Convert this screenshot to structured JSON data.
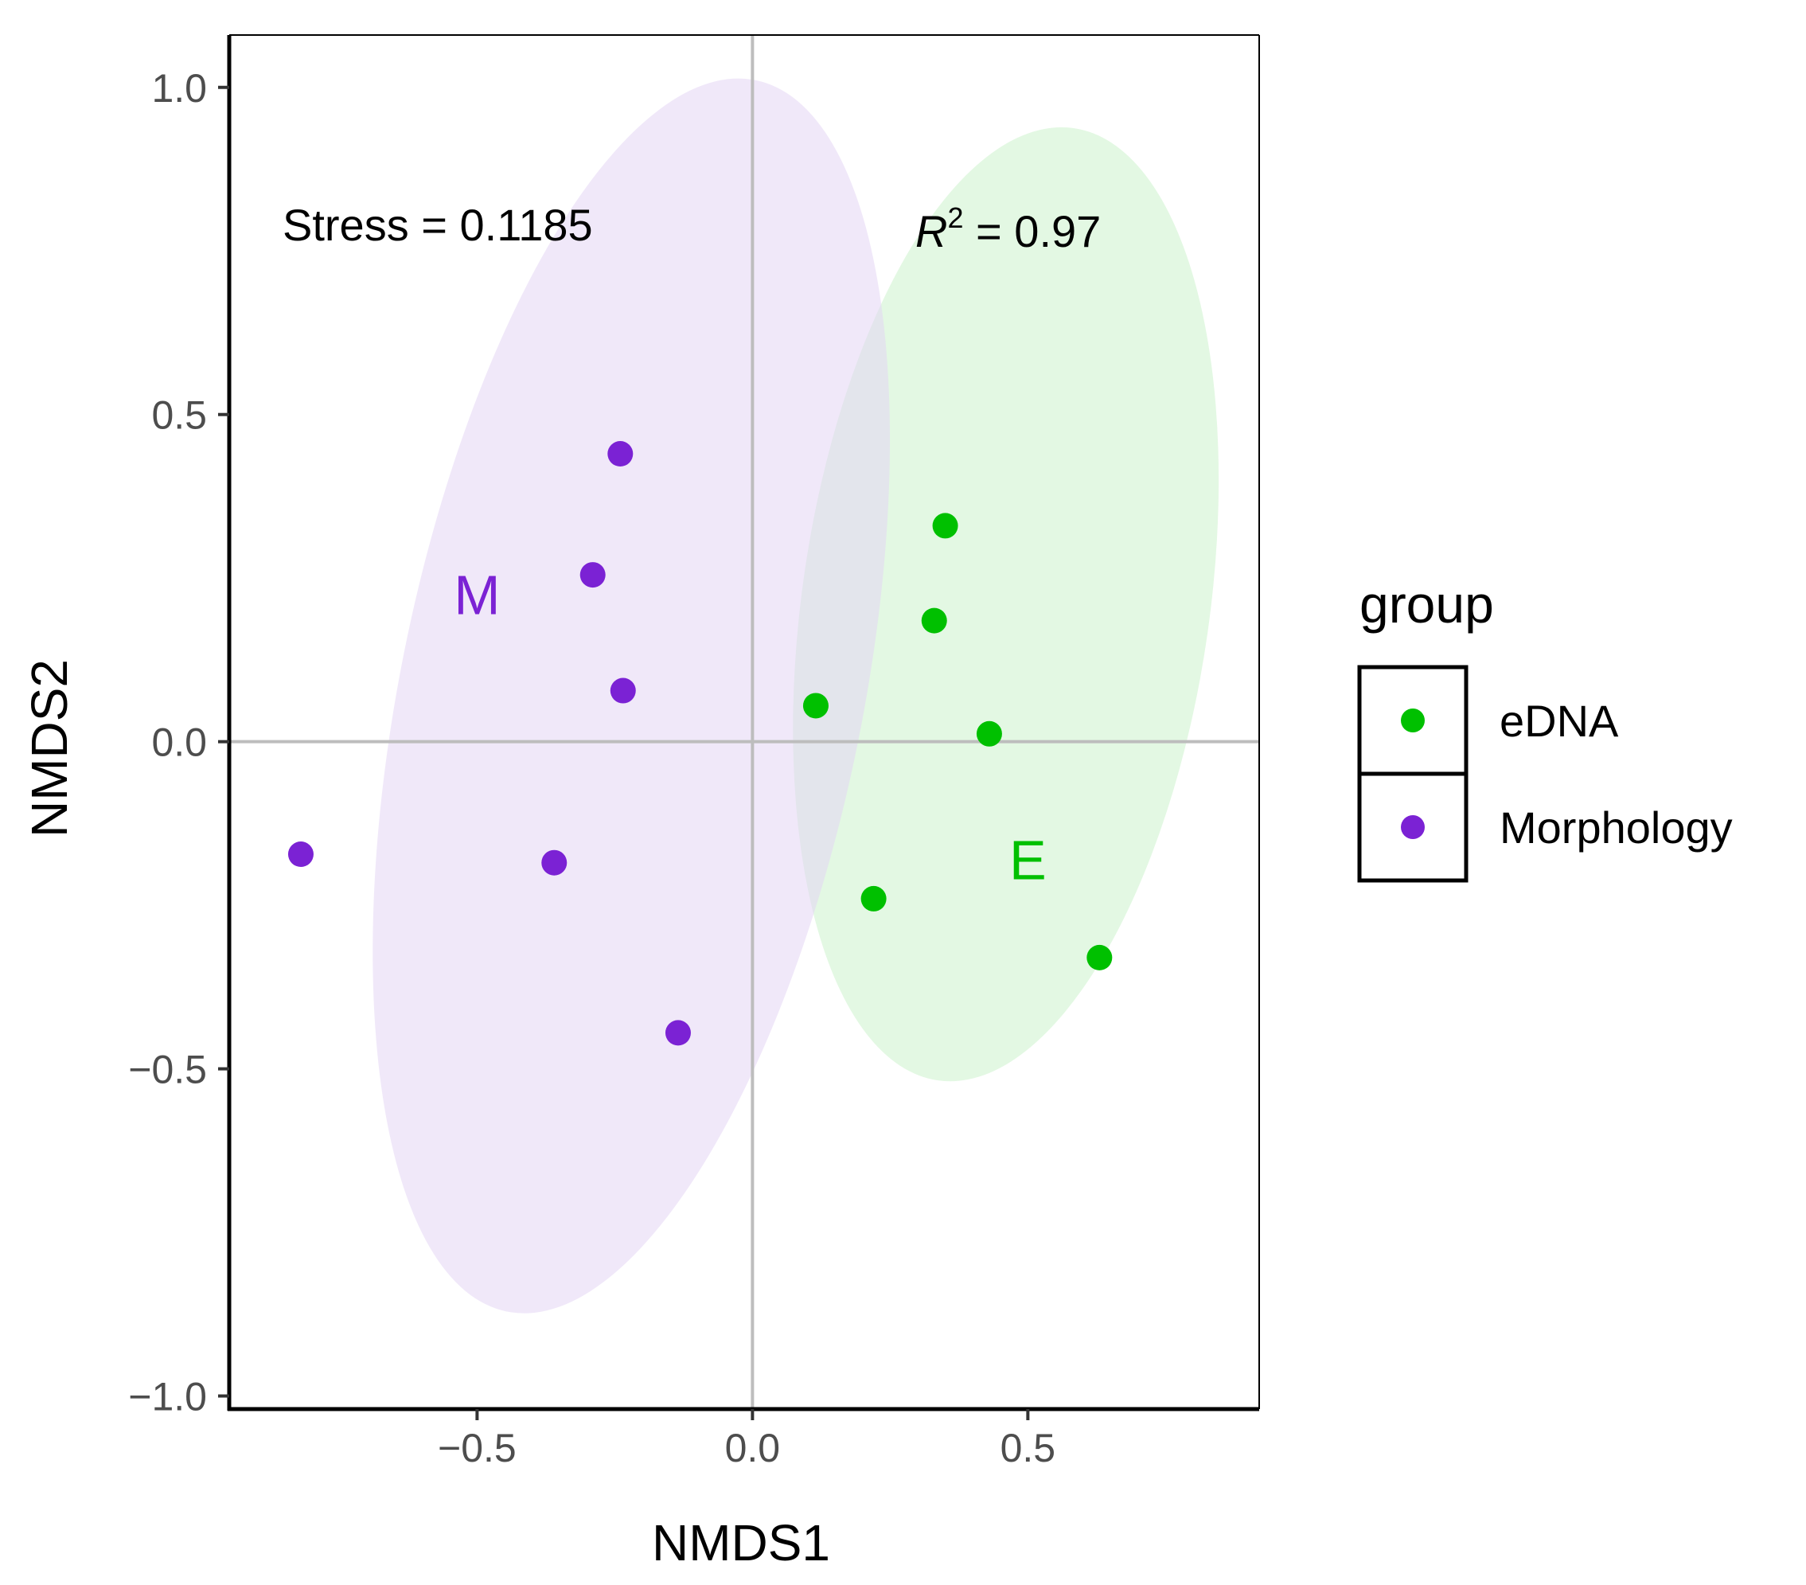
{
  "chart_data": {
    "type": "scatter",
    "xlabel": "NMDS1",
    "ylabel": "NMDS2",
    "xlim": [
      -0.95,
      0.92
    ],
    "ylim": [
      -1.02,
      1.08
    ],
    "x_ticks": [
      -0.5,
      0.0,
      0.5
    ],
    "y_ticks": [
      -1.0,
      -0.5,
      0.0,
      0.5,
      1.0
    ],
    "x_tick_labels": [
      "−0.5",
      "0.0",
      "0.5"
    ],
    "y_tick_labels": [
      "−1.0",
      "−0.5",
      "0.0",
      "0.5",
      "1.0"
    ],
    "grid": false,
    "reference_lines": {
      "x": 0.0,
      "y": 0.0
    },
    "annotations": {
      "stress": "Stress = 0.1185",
      "r2_symbol": "R",
      "r2_exponent": "2",
      "r2_value": " = 0.97"
    },
    "legend": {
      "title": "group",
      "placement": "right",
      "entries": [
        "eDNA",
        "Morphology"
      ]
    },
    "series": [
      {
        "name": "eDNA",
        "label": "E",
        "color": "#00c000",
        "ellipse_color": "#ccf2cc",
        "label_pos": [
          0.5,
          -0.21
        ],
        "ellipse": {
          "cx": 0.46,
          "cy": 0.21,
          "rx": 0.37,
          "ry": 0.735,
          "rotation": -0.12
        },
        "points": [
          {
            "x": 0.35,
            "y": 0.33
          },
          {
            "x": 0.33,
            "y": 0.185
          },
          {
            "x": 0.115,
            "y": 0.055
          },
          {
            "x": 0.43,
            "y": 0.012
          },
          {
            "x": 0.22,
            "y": -0.24
          },
          {
            "x": 0.63,
            "y": -0.33
          }
        ]
      },
      {
        "name": "Morphology",
        "label": "M",
        "color": "#7b22d4",
        "ellipse_color": "#e4d6f4",
        "label_pos": [
          -0.5,
          0.195
        ],
        "ellipse": {
          "cx": -0.22,
          "cy": 0.07,
          "rx": 0.42,
          "ry": 0.96,
          "rotation": -0.17
        },
        "points": [
          {
            "x": -0.24,
            "y": 0.44
          },
          {
            "x": -0.29,
            "y": 0.255
          },
          {
            "x": -0.235,
            "y": 0.078
          },
          {
            "x": -0.82,
            "y": -0.172
          },
          {
            "x": -0.36,
            "y": -0.185
          },
          {
            "x": -0.135,
            "y": -0.445
          }
        ]
      }
    ]
  }
}
